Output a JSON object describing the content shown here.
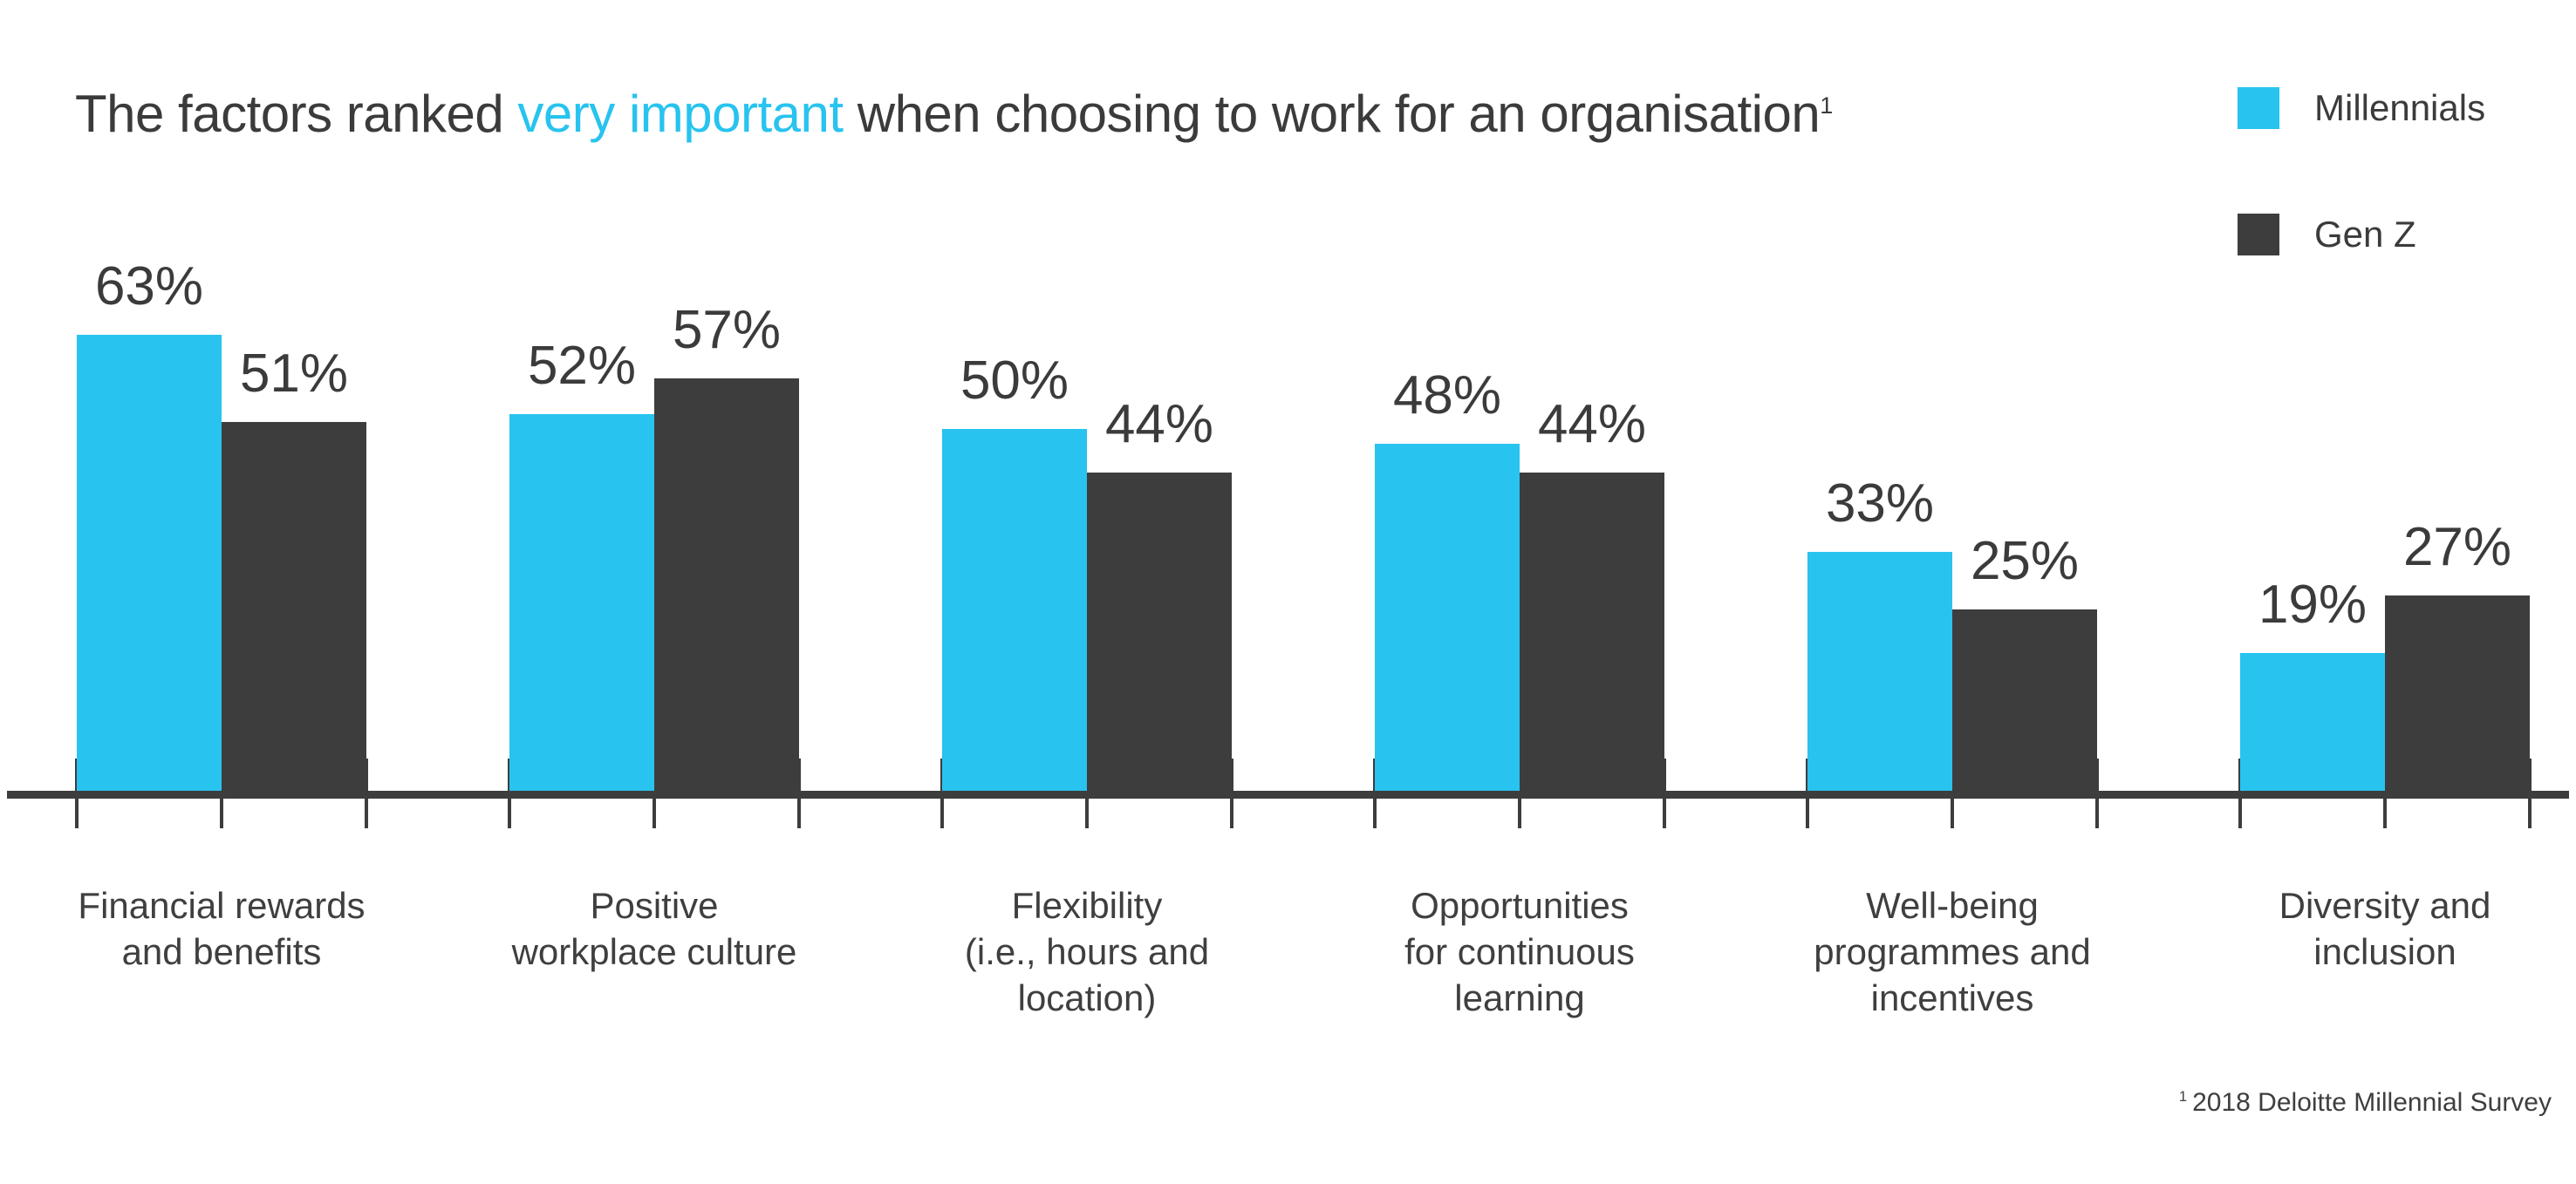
{
  "title": {
    "prefix": "The factors ranked ",
    "highlight": "very important",
    "suffix": " when choosing to work for an organisation",
    "superscript": "1"
  },
  "legend": {
    "items": [
      {
        "label": "Millennials",
        "color": "#28C3EF"
      },
      {
        "label": "Gen Z",
        "color": "#3D3D3D"
      }
    ]
  },
  "footnote": {
    "superscript": "1",
    "text": "2018 Deloitte Millennial Survey"
  },
  "colors": {
    "millennials": "#28C3EF",
    "genz": "#3D3D3D",
    "text": "#3B3B3B",
    "axis": "#3A3A3A",
    "title_highlight": "#28C3EF"
  },
  "chart_data": {
    "type": "bar",
    "title": "The factors ranked very important when choosing to work for an organisation",
    "categories": [
      "Financial rewards and benefits",
      "Positive workplace culture",
      "Flexibility (i.e., hours and location)",
      "Opportunities for continuous learning",
      "Well-being programmes and incentives",
      "Diversity and inclusion"
    ],
    "category_lines": [
      [
        "Financial rewards",
        "and benefits"
      ],
      [
        "Positive",
        "workplace culture"
      ],
      [
        "Flexibility",
        "(i.e., hours and",
        "location)"
      ],
      [
        "Opportunities",
        "for continuous",
        "learning"
      ],
      [
        "Well-being",
        "programmes and",
        "incentives"
      ],
      [
        "Diversity and",
        "inclusion"
      ]
    ],
    "series": [
      {
        "name": "Millennials",
        "color": "#28C3EF",
        "values": [
          63,
          52,
          50,
          48,
          33,
          19
        ]
      },
      {
        "name": "Gen Z",
        "color": "#3D3D3D",
        "values": [
          51,
          57,
          44,
          44,
          25,
          27
        ]
      }
    ],
    "value_suffix": "%",
    "value_labels": true,
    "xlabel": "",
    "ylabel": "",
    "ylim": [
      0,
      70
    ],
    "grid": false,
    "legend_position": "top-right"
  }
}
